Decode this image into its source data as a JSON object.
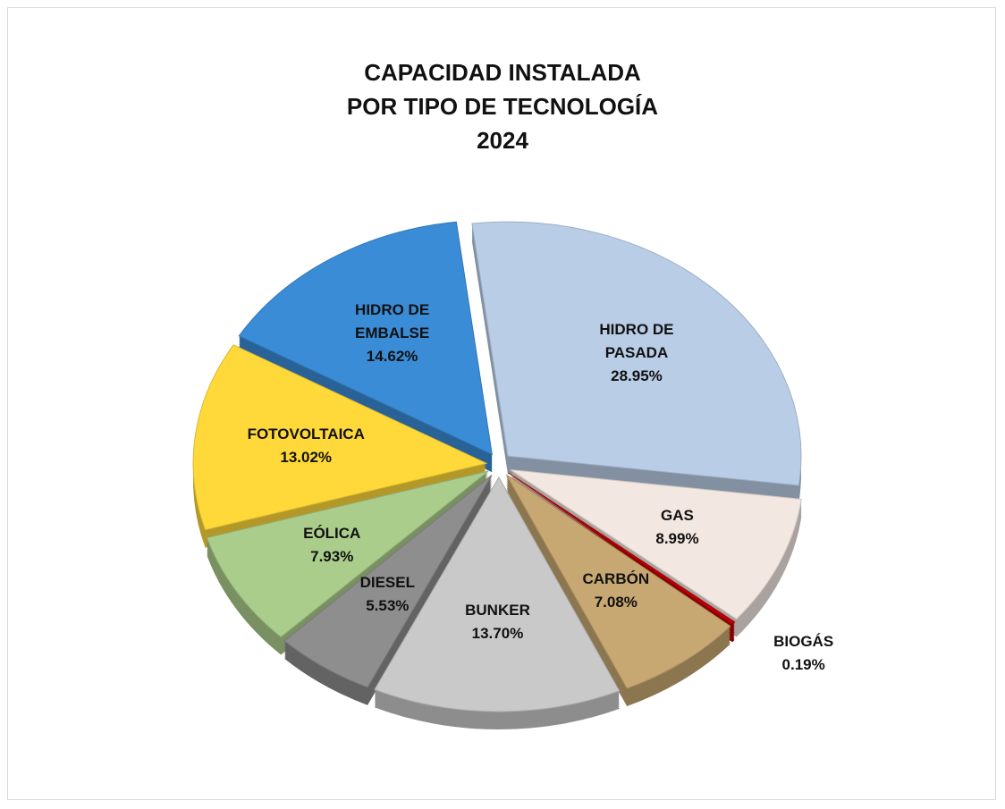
{
  "chart_data": {
    "type": "pie",
    "title": "CAPACIDAD  INSTALADA\nPOR  TIPO  DE  TECNOLOGÍA\n2024",
    "categories": [
      "HIDRO  DE\nPASADA",
      "GAS",
      "BIOGÁS",
      "CARBÓN",
      "BUNKER",
      "DIESEL",
      "EÓLICA",
      "FOTOVOLTAICA",
      "HIDRO  DE\nEMBALSE"
    ],
    "values": [
      28.95,
      8.99,
      0.19,
      7.08,
      13.7,
      5.53,
      7.93,
      13.02,
      14.62
    ],
    "value_labels": [
      "28.95%",
      "8.99%",
      "0.19%",
      "7.08%",
      "13.70%",
      "5.53%",
      "7.93%",
      "13.02%",
      "14.62%"
    ],
    "colors": [
      "#b9cde6",
      "#f2e7e1",
      "#c00000",
      "#c8a872",
      "#c9c9c9",
      "#8e8e8e",
      "#abcd8c",
      "#ffd93a",
      "#3b8cd6"
    ]
  }
}
